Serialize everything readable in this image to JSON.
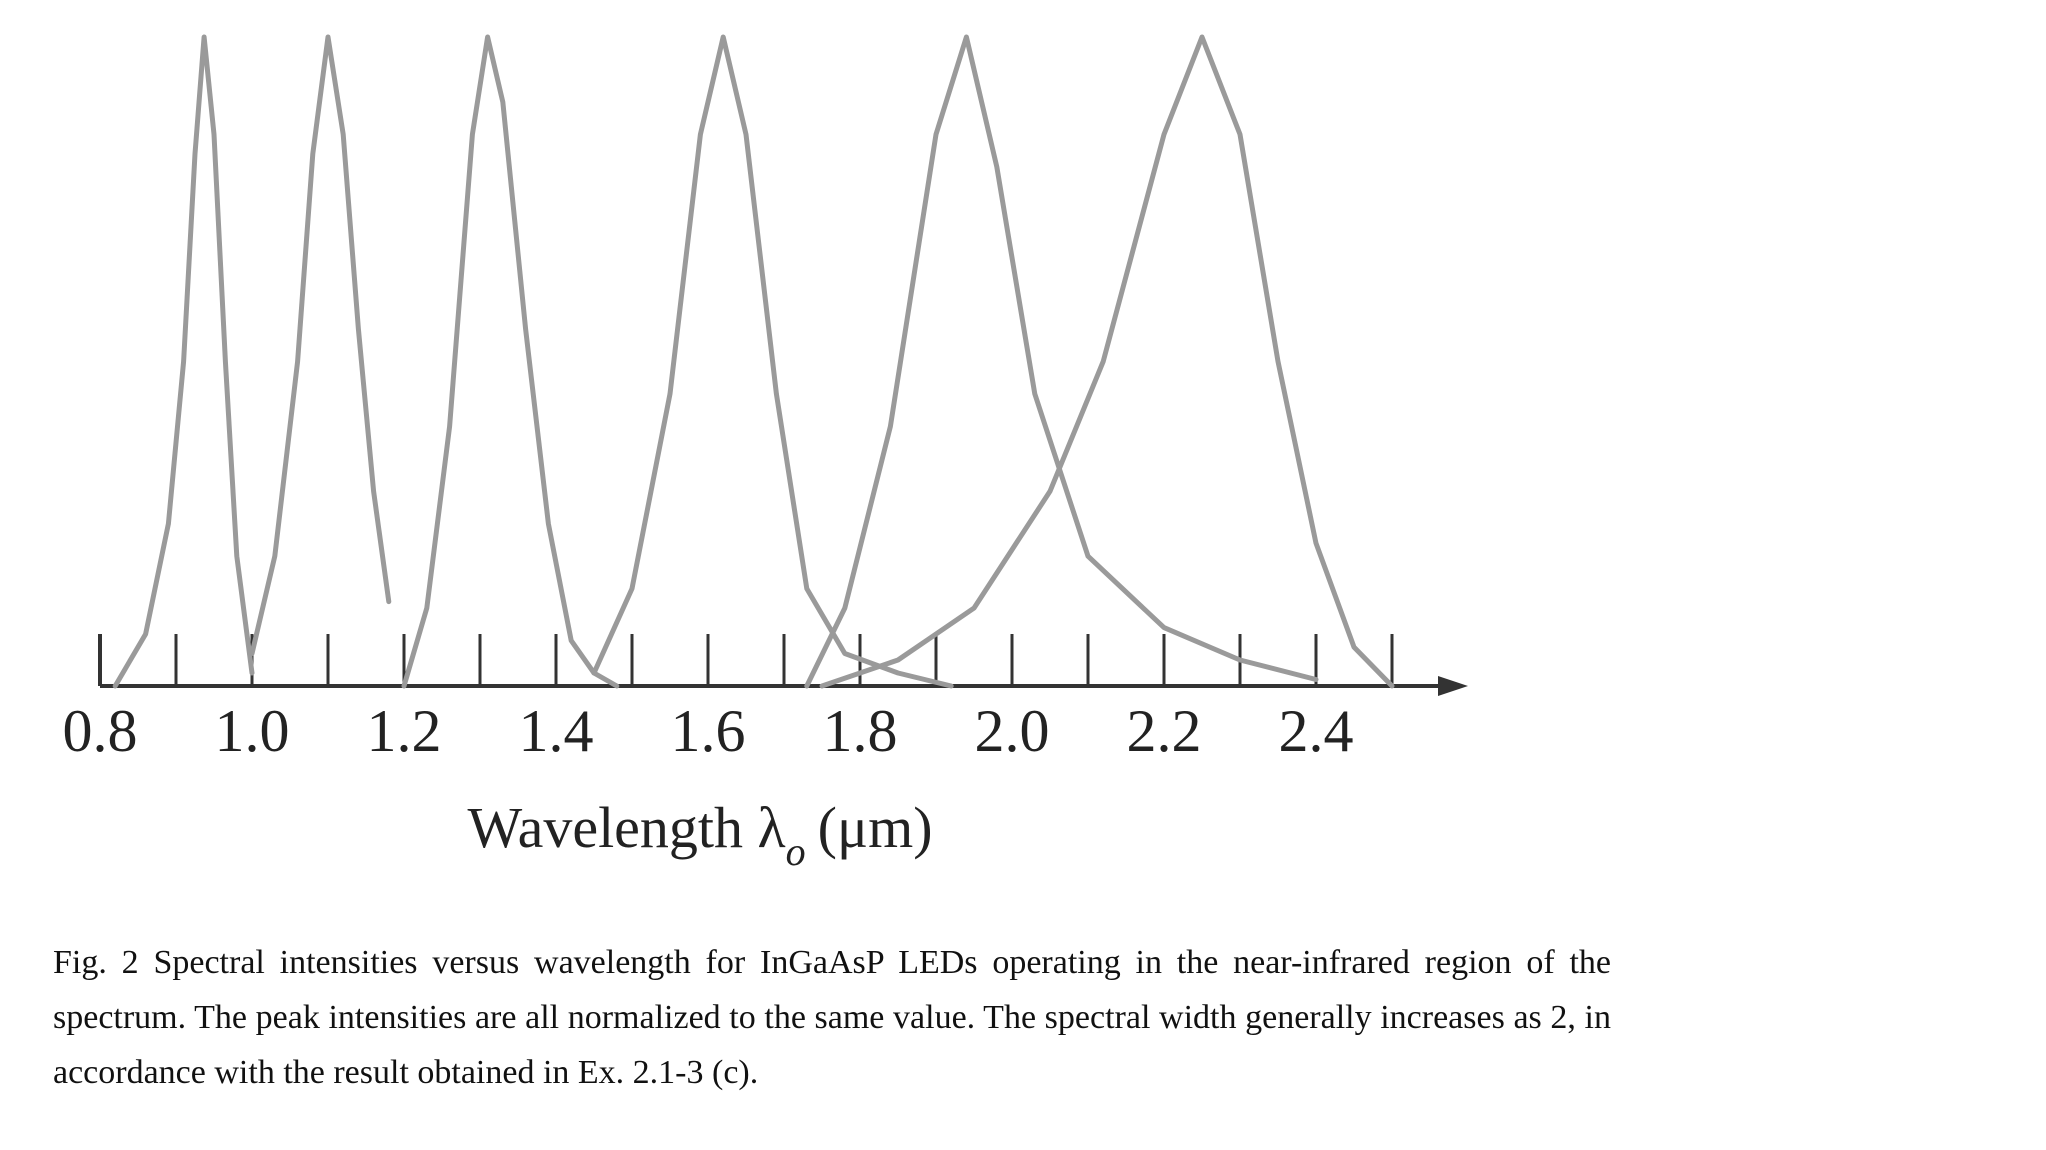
{
  "chart_data": {
    "type": "line",
    "xlabel": "Wavelength λ",
    "xlabel_subscript": "o",
    "xlabel_unit": "(μm)",
    "xlim": [
      0.8,
      2.6
    ],
    "xticks": [
      0.8,
      {
        "value": 1.0,
        "label": "1.0"
      },
      1.2,
      1.4,
      1.6,
      1.8,
      {
        "value": 2.0,
        "label": "2.0"
      },
      2.2,
      2.4
    ],
    "xminorticks": [
      0.9,
      1.1,
      1.3,
      1.5,
      1.7,
      1.9,
      2.1,
      2.3,
      2.5
    ],
    "ylim": [
      0,
      1
    ],
    "color": "#9a9a9a",
    "series": [
      {
        "x": [
          0.82,
          0.86,
          0.89,
          0.91,
          0.925,
          0.937,
          0.95,
          0.965,
          0.98,
          1.0
        ],
        "values": [
          0.0,
          0.08,
          0.25,
          0.5,
          0.82,
          1.0,
          0.85,
          0.5,
          0.2,
          0.02
        ]
      },
      {
        "x": [
          1.0,
          1.03,
          1.06,
          1.08,
          1.1,
          1.12,
          1.14,
          1.16,
          1.18
        ],
        "values": [
          0.05,
          0.2,
          0.5,
          0.82,
          1.0,
          0.85,
          0.55,
          0.3,
          0.13
        ]
      },
      {
        "x": [
          1.2,
          1.23,
          1.26,
          1.29,
          1.31,
          1.33,
          1.36,
          1.39,
          1.42,
          1.45,
          1.48
        ],
        "values": [
          0.0,
          0.12,
          0.4,
          0.85,
          1.0,
          0.9,
          0.55,
          0.25,
          0.07,
          0.02,
          0.0
        ]
      },
      {
        "x": [
          1.45,
          1.5,
          1.55,
          1.59,
          1.62,
          1.65,
          1.69,
          1.73,
          1.78,
          1.85,
          1.92
        ],
        "values": [
          0.02,
          0.15,
          0.45,
          0.85,
          1.0,
          0.85,
          0.45,
          0.15,
          0.05,
          0.02,
          0.0
        ]
      },
      {
        "x": [
          1.73,
          1.78,
          1.84,
          1.9,
          1.94,
          1.98,
          2.03,
          2.1,
          2.2,
          2.3,
          2.4
        ],
        "values": [
          0.0,
          0.12,
          0.4,
          0.85,
          1.0,
          0.8,
          0.45,
          0.2,
          0.09,
          0.04,
          0.01
        ]
      },
      {
        "x": [
          1.75,
          1.85,
          1.95,
          2.05,
          2.12,
          2.2,
          2.25,
          2.3,
          2.35,
          2.4,
          2.45,
          2.5
        ],
        "values": [
          0.0,
          0.04,
          0.12,
          0.3,
          0.5,
          0.85,
          1.0,
          0.85,
          0.5,
          0.22,
          0.06,
          0.0
        ]
      }
    ]
  },
  "caption": "Fig. 2 Spectral intensities versus wavelength for InGaAsP LEDs operating in the near-infrared region of the spectrum. The peak intensities are all normalized to the same value. The spectral width generally increases as 2, in accordance with the result obtained in Ex. 2.1-3 (c)."
}
